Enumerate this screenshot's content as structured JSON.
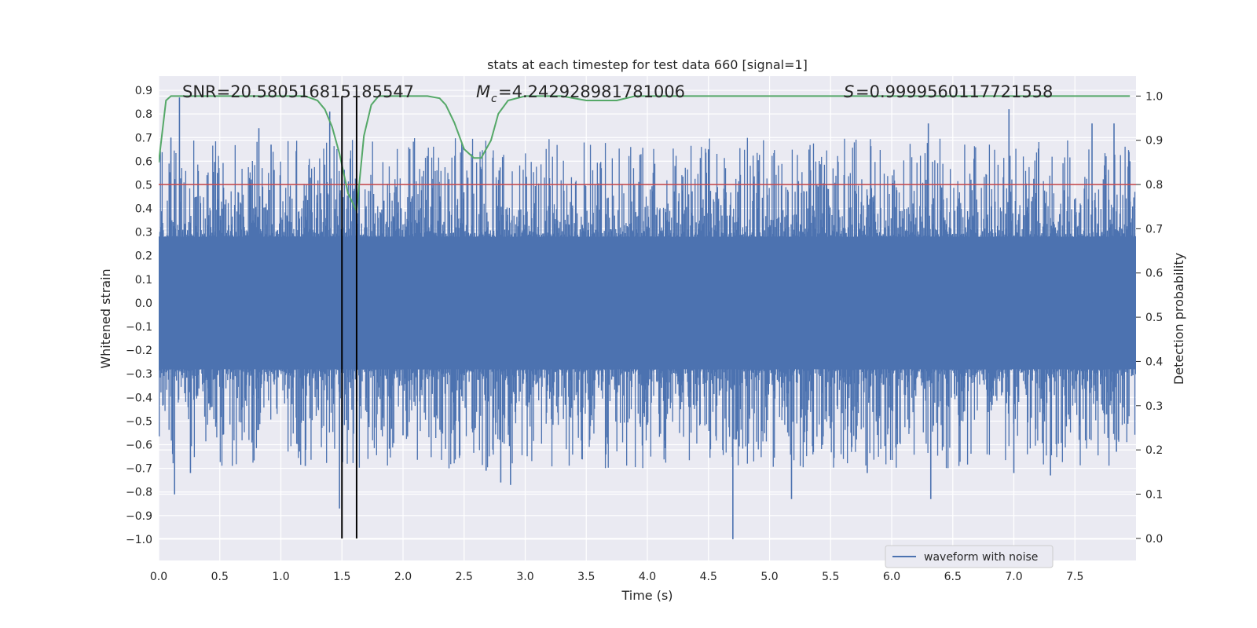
{
  "chart_data": {
    "type": "line",
    "title": "stats at each timestep for test data 660 [signal=1]",
    "xlabel": "Time (s)",
    "ylabel_left": "Whitened strain",
    "ylabel_right": "Detection probability",
    "xlim": [
      0.0,
      8.0
    ],
    "ylim_left": [
      -1.09,
      0.96
    ],
    "ylim_right": [
      -0.05,
      1.045
    ],
    "x_ticks": [
      "0.0",
      "0.5",
      "1.0",
      "1.5",
      "2.0",
      "2.5",
      "3.0",
      "3.5",
      "4.0",
      "4.5",
      "5.0",
      "5.5",
      "6.0",
      "6.5",
      "7.0",
      "7.5"
    ],
    "x_tick_values": [
      0.0,
      0.5,
      1.0,
      1.5,
      2.0,
      2.5,
      3.0,
      3.5,
      4.0,
      4.5,
      5.0,
      5.5,
      6.0,
      6.5,
      7.0,
      7.5
    ],
    "y_left_ticks": [
      "0.9",
      "0.8",
      "0.7",
      "0.6",
      "0.5",
      "0.4",
      "0.3",
      "0.2",
      "0.1",
      "0.0",
      "−0.1",
      "−0.2",
      "−0.3",
      "−0.4",
      "−0.5",
      "−0.6",
      "−0.7",
      "−0.8",
      "−0.9",
      "−1.0"
    ],
    "y_left_tick_values": [
      0.9,
      0.8,
      0.7,
      0.6,
      0.5,
      0.4,
      0.3,
      0.2,
      0.1,
      0.0,
      -0.1,
      -0.2,
      -0.3,
      -0.4,
      -0.5,
      -0.6,
      -0.7,
      -0.8,
      -0.9,
      -1.0
    ],
    "y_right_ticks": [
      "1.0",
      "0.9",
      "0.8",
      "0.7",
      "0.6",
      "0.5",
      "0.4",
      "0.3",
      "0.2",
      "0.1",
      "0.0"
    ],
    "y_right_tick_values": [
      1.0,
      0.9,
      0.8,
      0.7,
      0.6,
      0.5,
      0.4,
      0.3,
      0.2,
      0.1,
      0.0
    ],
    "annotations": {
      "snr": "SNR=20.580516815185547",
      "mc": "=4.242928981781006",
      "s": "=0.9999560117721558"
    },
    "legend": {
      "label": "waveform with noise",
      "placement": "lower right"
    },
    "threshold": {
      "y_right": 0.8,
      "color": "#c44e52"
    },
    "vlines": [
      1.5,
      1.62
    ],
    "waveform": {
      "name": "waveform with noise",
      "color": "#4c72b0",
      "duration": 8.0,
      "core_amplitude": 0.28,
      "spikes": [
        {
          "t": 0.17,
          "y": 0.87
        },
        {
          "t": 0.1,
          "y": 0.7
        },
        {
          "t": 0.13,
          "y": -0.81
        },
        {
          "t": 0.26,
          "y": -0.72
        },
        {
          "t": 0.82,
          "y": 0.74
        },
        {
          "t": 0.92,
          "y": 0.67
        },
        {
          "t": 1.2,
          "y": -0.69
        },
        {
          "t": 1.4,
          "y": 0.81
        },
        {
          "t": 1.48,
          "y": -0.87
        },
        {
          "t": 1.62,
          "y": -0.61
        },
        {
          "t": 2.0,
          "y": -0.56
        },
        {
          "t": 2.68,
          "y": -0.71
        },
        {
          "t": 2.8,
          "y": -0.76
        },
        {
          "t": 2.88,
          "y": -0.77
        },
        {
          "t": 4.5,
          "y": 0.65
        },
        {
          "t": 4.7,
          "y": -1.0
        },
        {
          "t": 5.18,
          "y": -0.83
        },
        {
          "t": 5.8,
          "y": -0.72
        },
        {
          "t": 6.3,
          "y": 0.76
        },
        {
          "t": 6.32,
          "y": -0.83
        },
        {
          "t": 6.96,
          "y": 0.82
        },
        {
          "t": 7.0,
          "y": -0.72
        },
        {
          "t": 7.3,
          "y": -0.73
        },
        {
          "t": 7.64,
          "y": 0.76
        },
        {
          "t": 7.82,
          "y": 0.76
        },
        {
          "t": 7.84,
          "y": -0.63
        },
        {
          "t": 7.95,
          "y": 0.6
        }
      ]
    },
    "probability": {
      "color": "#55a868",
      "x": [
        0.0,
        0.06,
        0.1,
        0.2,
        0.5,
        1.0,
        1.2,
        1.3,
        1.36,
        1.42,
        1.48,
        1.55,
        1.62,
        1.68,
        1.74,
        1.8,
        1.9,
        2.0,
        2.2,
        2.3,
        2.35,
        2.42,
        2.5,
        2.58,
        2.64,
        2.72,
        2.78,
        2.86,
        3.0,
        3.3,
        3.5,
        3.6,
        3.75,
        3.9,
        4.0,
        4.5,
        5.0,
        6.0,
        7.0,
        7.95
      ],
      "y": [
        0.85,
        0.99,
        1.0,
        1.0,
        1.0,
        1.0,
        1.0,
        0.99,
        0.97,
        0.93,
        0.87,
        0.78,
        0.74,
        0.91,
        0.98,
        1.0,
        1.0,
        1.0,
        1.0,
        0.995,
        0.98,
        0.94,
        0.88,
        0.86,
        0.86,
        0.9,
        0.96,
        0.99,
        1.0,
        1.0,
        0.99,
        0.99,
        0.99,
        1.0,
        1.0,
        1.0,
        1.0,
        1.0,
        1.0,
        1.0
      ]
    }
  }
}
